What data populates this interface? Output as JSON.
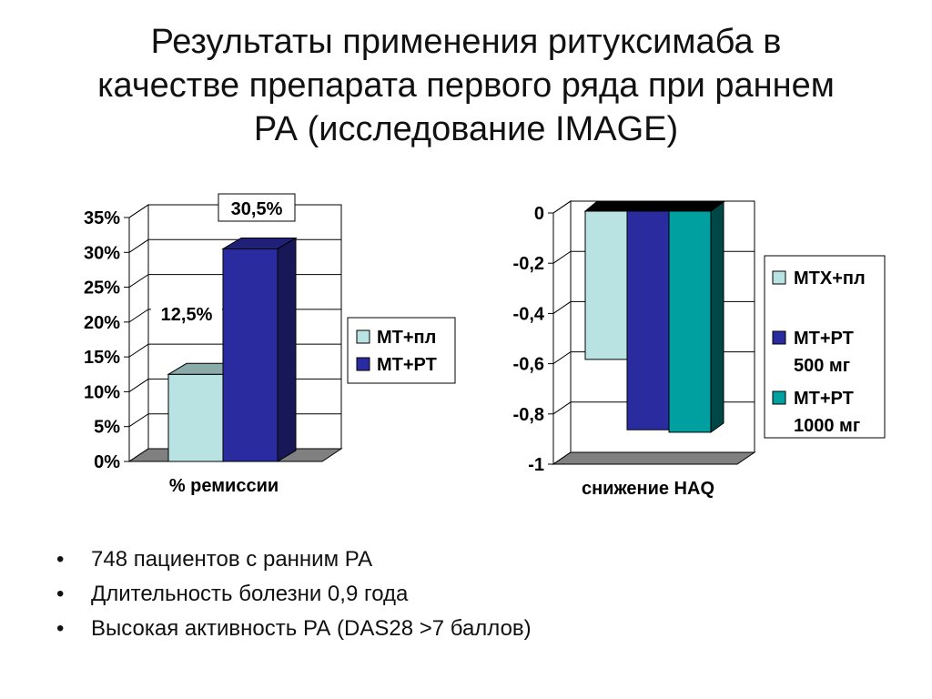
{
  "title_lines": [
    "Результаты применения ритуксимаба в",
    "качестве препарата первого ряда при раннем",
    "РА (исследование IMAGE)"
  ],
  "chart_data": [
    {
      "type": "bar",
      "categories": [
        "% ремиссии"
      ],
      "xlabel": "% ремиссии",
      "ylim": [
        0,
        35
      ],
      "yticks": [
        "0%",
        "5%",
        "10%",
        "15%",
        "20%",
        "25%",
        "30%",
        "35%"
      ],
      "grid": true,
      "legend": "right",
      "series": [
        {
          "name": "МТ+пл",
          "values": [
            12.5
          ],
          "label": "12,5%",
          "color": "#b9e3e3"
        },
        {
          "name": "МТ+РТ",
          "values": [
            30.5
          ],
          "label": "30,5%",
          "color": "#2b2ba0"
        }
      ]
    },
    {
      "type": "bar",
      "categories": [
        "снижение HAQ"
      ],
      "xlabel": "снижение HAQ",
      "ylim": [
        -1,
        0
      ],
      "yticks": [
        "0",
        "-0,2",
        "-0,4",
        "-0,6",
        "-0,8",
        "-1"
      ],
      "grid": true,
      "legend": "right",
      "series": [
        {
          "name": "МТХ+пл",
          "values": [
            -0.63
          ],
          "color": "#b9e3e3"
        },
        {
          "name": "МТ+РТ 500 мг",
          "name_lines": [
            "МТ+РТ",
            "500 мг"
          ],
          "values": [
            -0.91
          ],
          "color": "#2b2ba0"
        },
        {
          "name": "МТ+РТ 1000 мг",
          "name_lines": [
            "МТ+РТ",
            "1000 мг"
          ],
          "values": [
            -0.92
          ],
          "color": "#00a0a0"
        }
      ]
    }
  ],
  "bullets": [
    "748 пациентов с ранним РА",
    "Длительность болезни 0,9 года",
    "Высокая активность РА (DAS28 >7 баллов)"
  ]
}
